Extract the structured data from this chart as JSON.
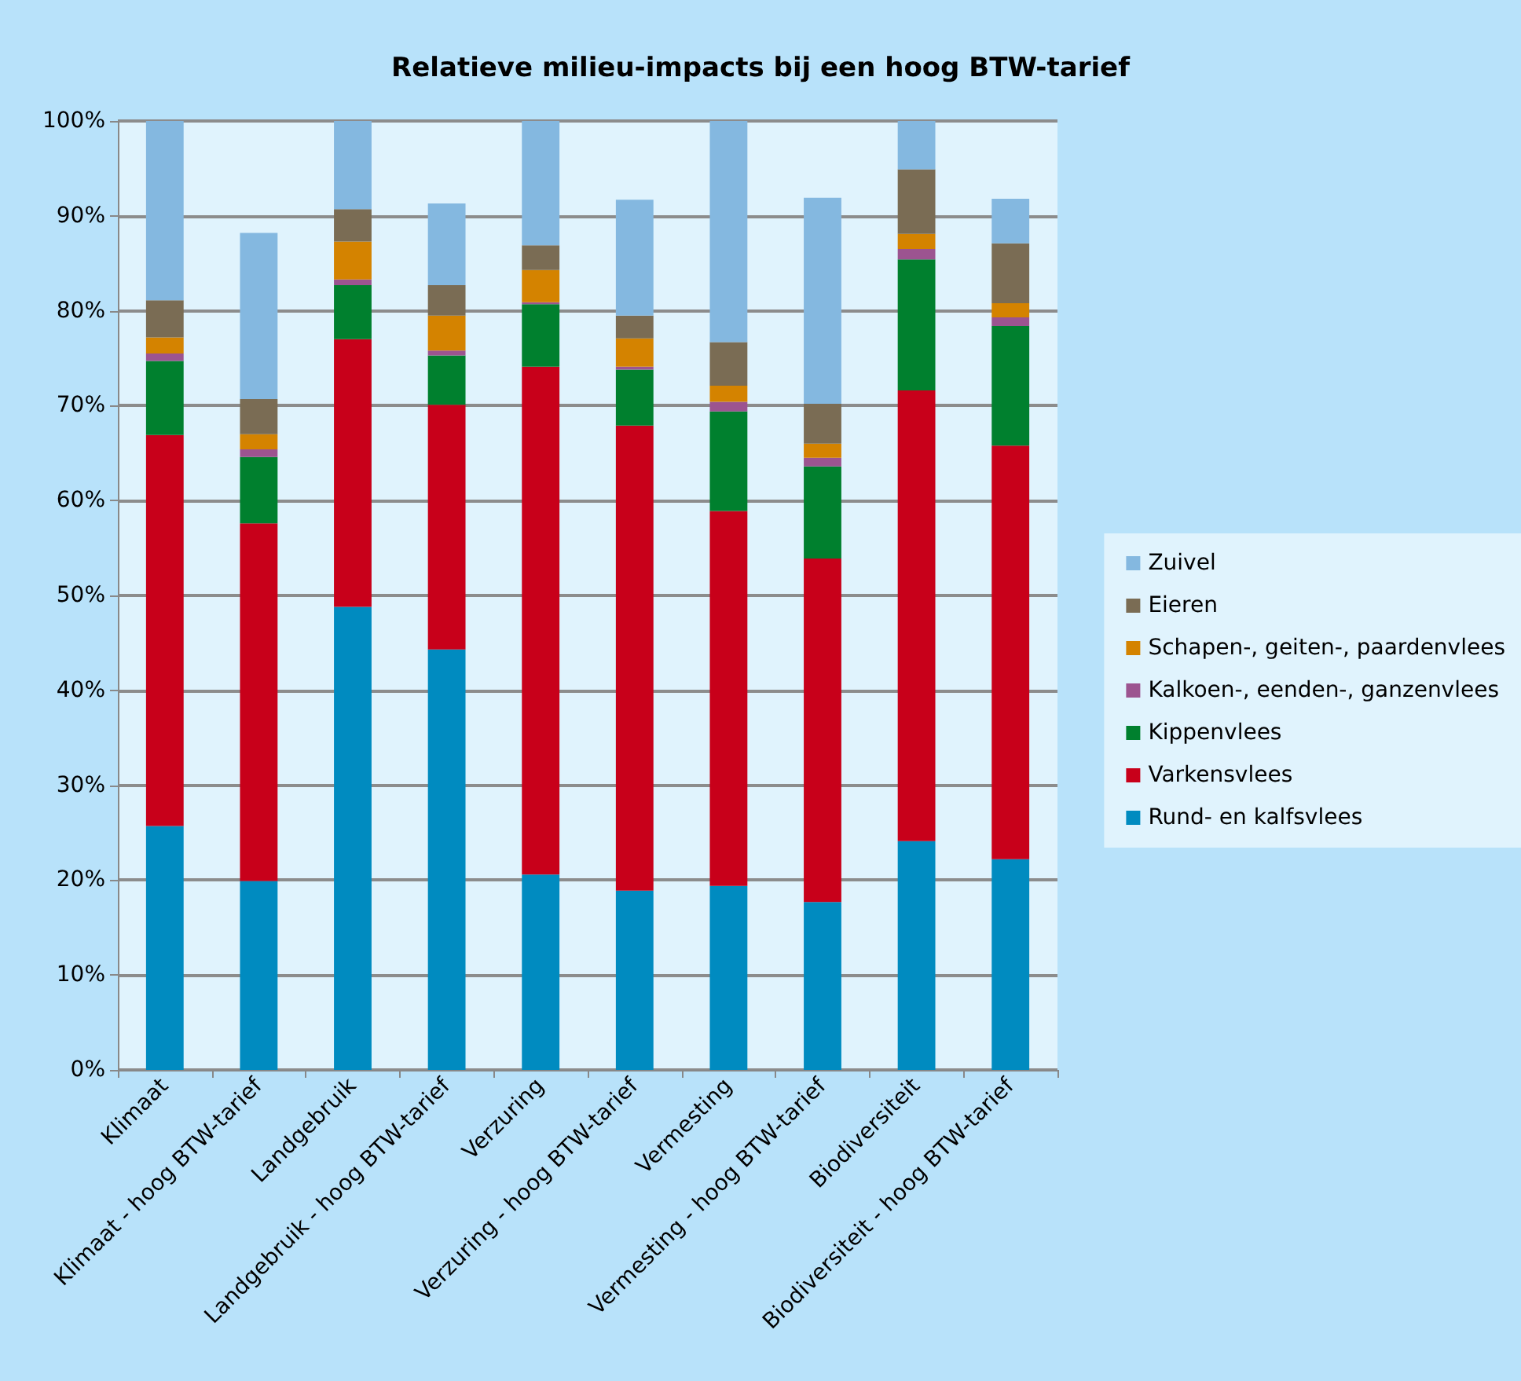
{
  "chart_data": {
    "type": "bar",
    "title": "Relatieve milieu-impacts bij een hoog BTW-tarief",
    "stacked": true,
    "grid": "y",
    "legend": "right",
    "categories": [
      "Klimaat",
      "Klimaat - hoog BTW-tarief",
      "Landgebruik",
      "Landgebruik - hoog BTW-tarief",
      "Verzuring",
      "Verzuring - hoog BTW-tarief",
      "Vermesting",
      "Vermesting - hoog BTW-tarief",
      "Biodiversiteit",
      "Biodiversiteit - hoog BTW-tarief"
    ],
    "ylim": [
      0,
      100
    ],
    "yticks": [
      {
        "value": 0,
        "label": "0%"
      },
      {
        "value": 10,
        "label": "10%"
      },
      {
        "value": 20,
        "label": "20%"
      },
      {
        "value": 30,
        "label": "30%"
      },
      {
        "value": 40,
        "label": "40%"
      },
      {
        "value": 50,
        "label": "50%"
      },
      {
        "value": 60,
        "label": "60%"
      },
      {
        "value": 70,
        "label": "70%"
      },
      {
        "value": 80,
        "label": "80%"
      },
      {
        "value": 90,
        "label": "90%"
      },
      {
        "value": 100,
        "label": "100%"
      }
    ],
    "series": [
      {
        "name": "Rund- en kalfsvlees",
        "color": "#008bc0",
        "values": [
          25.7,
          19.9,
          48.8,
          44.3,
          20.6,
          18.9,
          19.4,
          17.7,
          24.1,
          22.2
        ]
      },
      {
        "name": "Varkensvlees",
        "color": "#c8001a",
        "values": [
          41.2,
          37.7,
          28.2,
          25.8,
          53.5,
          49.0,
          39.5,
          36.2,
          47.5,
          43.6
        ]
      },
      {
        "name": "Kippenvlees",
        "color": "#00802e",
        "values": [
          7.8,
          7.0,
          5.7,
          5.2,
          6.6,
          5.9,
          10.5,
          9.7,
          13.8,
          12.6
        ]
      },
      {
        "name": "Kalkoen-, eenden-, ganzenvlees",
        "color": "#9c5490",
        "values": [
          0.8,
          0.8,
          0.6,
          0.5,
          0.2,
          0.3,
          1.0,
          0.9,
          1.1,
          0.9
        ]
      },
      {
        "name": "Schapen-, geiten-, paardenvlees",
        "color": "#d48300",
        "values": [
          1.7,
          1.6,
          4.0,
          3.7,
          3.4,
          3.0,
          1.7,
          1.5,
          1.6,
          1.5
        ]
      },
      {
        "name": "Eieren",
        "color": "#7a6c54",
        "values": [
          3.9,
          3.7,
          3.4,
          3.2,
          2.6,
          2.4,
          4.6,
          4.2,
          6.8,
          6.3
        ]
      },
      {
        "name": "Zuivel",
        "color": "#84b8e0",
        "values": [
          18.9,
          17.5,
          9.3,
          8.6,
          13.1,
          12.2,
          23.3,
          21.7,
          5.1,
          4.7
        ]
      }
    ]
  }
}
